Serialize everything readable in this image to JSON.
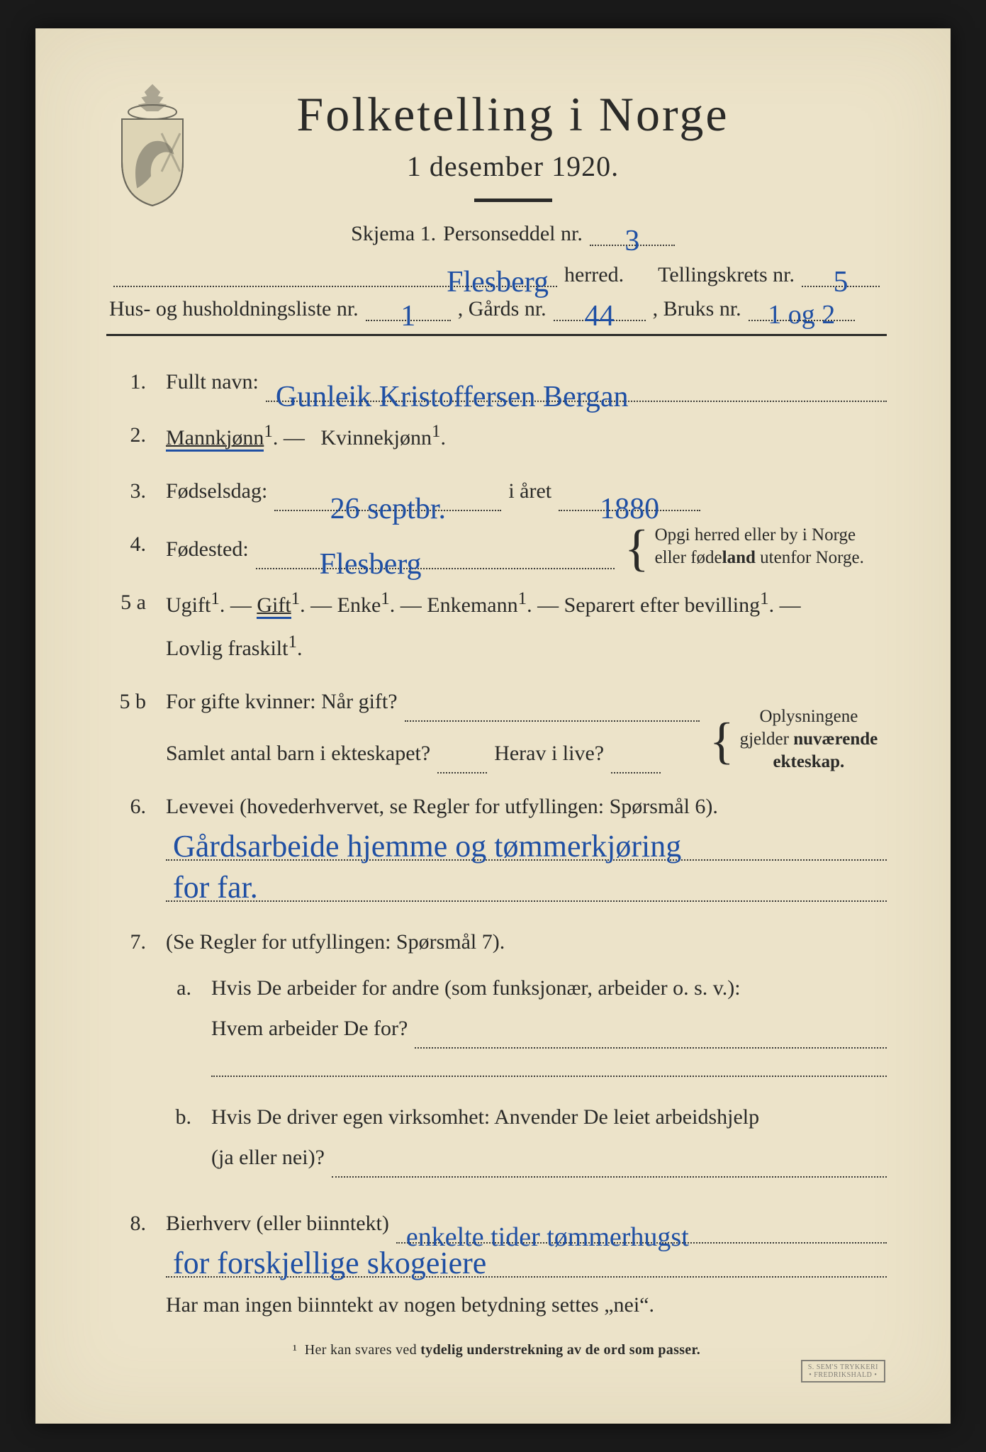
{
  "document": {
    "title": "Folketelling i Norge",
    "subtitle": "1 desember 1920.",
    "page_background": "#ece3c9",
    "ink_color": "#2a2a28",
    "handwriting_color": "#1f4fa3"
  },
  "header_meta": {
    "skjema_label": "Skjema 1.",
    "personseddel_label": "Personseddel nr.",
    "personseddel_nr": "3",
    "herred_label": "herred.",
    "herred_value": "Flesberg",
    "tellingskrets_label": "Tellingskrets nr.",
    "tellingskrets_nr": "5",
    "husliste_label": "Hus- og husholdningsliste nr.",
    "husliste_nr": "1",
    "gards_label": ", Gårds nr.",
    "gards_nr": "44",
    "bruks_label": ", Bruks nr.",
    "bruks_nr": "1 og 2"
  },
  "q1": {
    "num": "1.",
    "label": "Fullt navn:",
    "value": "Gunleik Kristoffersen Bergan"
  },
  "q2": {
    "num": "2.",
    "opt_male": "Mannkjønn",
    "sup": "1",
    "dash": ". —",
    "opt_female": "Kvinnekjønn",
    "selected": "male"
  },
  "q3": {
    "num": "3.",
    "label": "Fødselsdag:",
    "day": "26 septbr.",
    "year_label": "i året",
    "year": "1880"
  },
  "q4": {
    "num": "4.",
    "label": "Fødested:",
    "value": "Flesberg",
    "note_line1": "Opgi herred eller by i Norge",
    "note_line2": "eller fødeland utenfor Norge."
  },
  "q5a": {
    "num": "5 a",
    "opts": [
      "Ugift",
      "Gift",
      "Enke",
      "Enkemann",
      "Separert efter bevilling",
      "Lovlig fraskilt"
    ],
    "sup": "1",
    "sep": ". —",
    "selected_index": 1
  },
  "q5b": {
    "num": "5 b",
    "line1_a": "For gifte kvinner:  Når gift?",
    "line2_a": "Samlet antal barn i ekteskapet?",
    "line2_b": "Herav i live?",
    "note_l1": "Oplysningene",
    "note_l2": "gjelder nuværende",
    "note_l3": "ekteskap."
  },
  "q6": {
    "num": "6.",
    "label": "Levevei (hovederhvervet, se Regler for utfyllingen:  Spørsmål 6).",
    "value_line1": "Gårdsarbeide hjemme og tømmerkjøring",
    "value_line2": "for far."
  },
  "q7": {
    "num": "7.",
    "label": "(Se Regler for utfyllingen:  Spørsmål 7).",
    "a_num": "a.",
    "a_l1": "Hvis De arbeider for andre (som funksjonær, arbeider o. s. v.):",
    "a_l2": "Hvem arbeider De for?",
    "b_num": "b.",
    "b_l1": "Hvis De driver egen virksomhet:  Anvender De leiet arbeidshjelp",
    "b_l2": "(ja eller nei)?"
  },
  "q8": {
    "num": "8.",
    "label": "Bierhverv (eller biinntekt)",
    "value_line1": "enkelte tider tømmerhugst",
    "value_line2": "for forskjellige skogeiere",
    "tail": "Har man ingen biinntekt av nogen betydning settes „nei“."
  },
  "footnote": "¹  Her kan svares ved tydelig understrekning av de ord som passer.",
  "stamp": {
    "l1": "S. SEM'S TRYKKERI",
    "l2": "• FREDRIKSHALD •"
  }
}
